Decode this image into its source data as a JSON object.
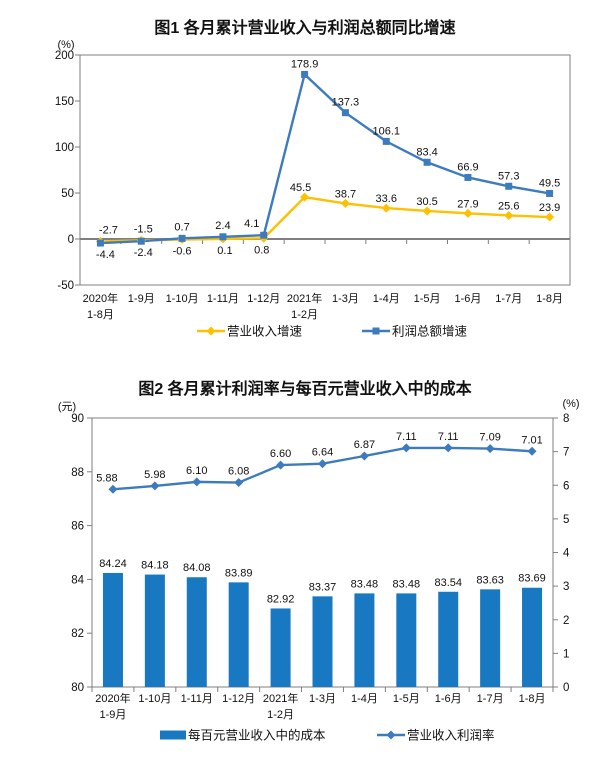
{
  "page": {
    "background": "#ffffff"
  },
  "colors": {
    "axis_gray": "#7F7F7F",
    "revenue_yellow": "#FFC000",
    "profit_blue": "#3D7BBF",
    "cost_bar_blue": "#1878C2",
    "label_black": "#111111"
  },
  "chart_data": [
    {
      "type": "line",
      "title": "图1 各月累计营业收入与利润总额同比增速",
      "unit_left": "(%)",
      "ylim": [
        -50,
        200
      ],
      "ytick_labels": [
        "200",
        "150",
        "100",
        "50",
        "0",
        "-50"
      ],
      "ytick_values": [
        200,
        150,
        100,
        50,
        0,
        -50
      ],
      "grid": false,
      "legend_position": "bottom",
      "categories": [
        [
          "2020年",
          "1-8月"
        ],
        [
          "1-9月"
        ],
        [
          "1-10月"
        ],
        [
          "1-11月"
        ],
        [
          "1-12月"
        ],
        [
          "2021年",
          "1-2月"
        ],
        [
          "1-3月"
        ],
        [
          "1-4月"
        ],
        [
          "1-5月"
        ],
        [
          "1-6月"
        ],
        [
          "1-7月"
        ],
        [
          "1-8月"
        ]
      ],
      "series": [
        {
          "name": "营业收入增速",
          "color": "#FFC000",
          "marker": "diamond",
          "values": [
            -2.7,
            -1.5,
            -0.6,
            0.1,
            0.8,
            45.5,
            38.7,
            33.6,
            30.5,
            27.9,
            25.6,
            23.9
          ],
          "labels": [
            "-2.7",
            "-1.5",
            "-0.6",
            "0.1",
            "0.8",
            "45.5",
            "38.7",
            "33.6",
            "30.5",
            "27.9",
            "25.6",
            "23.9"
          ]
        },
        {
          "name": "利润总额增速",
          "color": "#3D7BBF",
          "marker": "square",
          "values": [
            -4.4,
            -2.4,
            0.7,
            2.4,
            4.1,
            178.9,
            137.3,
            106.1,
            83.4,
            66.9,
            57.3,
            49.5
          ],
          "labels": [
            "-4.4",
            "-2.4",
            "0.7",
            "2.4",
            "4.1",
            "178.9",
            "137.3",
            "106.1",
            "83.4",
            "66.9",
            "57.3",
            "49.5"
          ]
        }
      ]
    },
    {
      "type": "bar+line",
      "title": "图2 各月累计利润率与每百元营业收入中的成本",
      "unit_left": "(元)",
      "unit_right": "(%)",
      "ylim_left": [
        80,
        90
      ],
      "ytick_labels_left": [
        "90",
        "88",
        "86",
        "84",
        "82",
        "80"
      ],
      "ytick_values_left": [
        90,
        88,
        86,
        84,
        82,
        80
      ],
      "ylim_right": [
        0,
        8
      ],
      "ytick_labels_right": [
        "8",
        "7",
        "6",
        "5",
        "4",
        "3",
        "2",
        "1",
        "0"
      ],
      "ytick_values_right": [
        8,
        7,
        6,
        5,
        4,
        3,
        2,
        1,
        0
      ],
      "grid": false,
      "legend_position": "bottom",
      "categories": [
        [
          "2020年",
          "1-9月"
        ],
        [
          "1-10月"
        ],
        [
          "1-11月"
        ],
        [
          "1-12月"
        ],
        [
          "2021年",
          "1-2月"
        ],
        [
          "1-3月"
        ],
        [
          "1-4月"
        ],
        [
          "1-5月"
        ],
        [
          "1-6月"
        ],
        [
          "1-7月"
        ],
        [
          "1-8月"
        ]
      ],
      "bar_series": {
        "name": "每百元营业收入中的成本",
        "color": "#1878C2",
        "axis": "left",
        "values": [
          84.24,
          84.18,
          84.08,
          83.89,
          82.92,
          83.37,
          83.48,
          83.48,
          83.54,
          83.63,
          83.69
        ],
        "labels": [
          "84.24",
          "84.18",
          "84.08",
          "83.89",
          "82.92",
          "83.37",
          "83.48",
          "83.48",
          "83.54",
          "83.63",
          "83.69"
        ]
      },
      "line_series": {
        "name": "营业收入利润率",
        "color": "#3D7BBF",
        "marker": "diamond",
        "axis": "right",
        "values": [
          5.88,
          5.98,
          6.1,
          6.08,
          6.6,
          6.64,
          6.87,
          7.11,
          7.11,
          7.09,
          7.01
        ],
        "labels": [
          "5.88",
          "5.98",
          "6.10",
          "6.08",
          "6.60",
          "6.64",
          "6.87",
          "7.11",
          "7.11",
          "7.09",
          "7.01"
        ]
      }
    }
  ]
}
